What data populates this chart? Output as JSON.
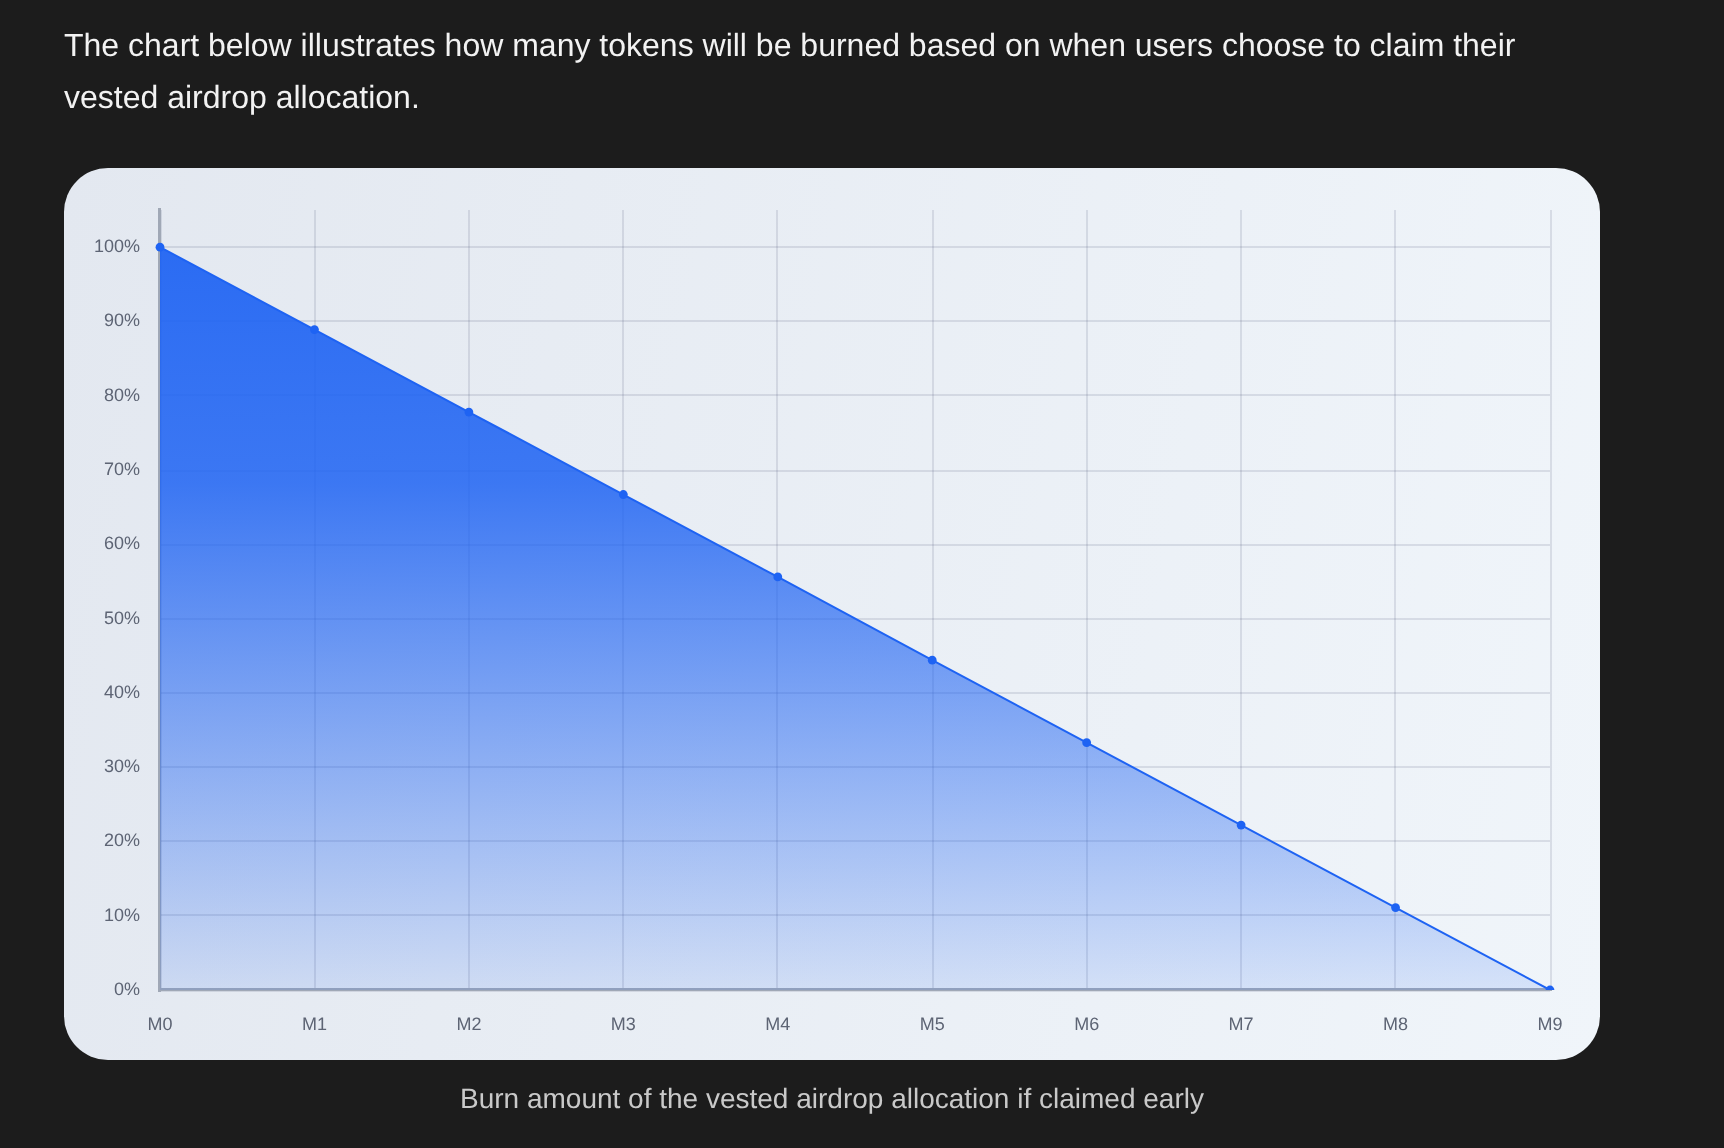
{
  "chart_data": {
    "type": "area",
    "title": "The chart below illustrates how many tokens will be burned based on when users choose to claim their vested airdrop allocation.",
    "annotations": [
      "Burn amount of the vested airdrop allocation if claimed early"
    ],
    "categories": [
      "M0",
      "M1",
      "M2",
      "M3",
      "M4",
      "M5",
      "M6",
      "M7",
      "M8",
      "M9"
    ],
    "values": [
      100,
      88.9,
      77.8,
      66.7,
      55.6,
      44.4,
      33.3,
      22.2,
      11.1,
      0
    ],
    "color": "#1e63f3",
    "ylim": [
      0,
      105
    ],
    "yticks": [
      {
        "value": 0,
        "label": "0%"
      },
      {
        "value": 10,
        "label": "10%"
      },
      {
        "value": 20,
        "label": "20%"
      },
      {
        "value": 30,
        "label": "30%"
      },
      {
        "value": 40,
        "label": "40%"
      },
      {
        "value": 50,
        "label": "50%"
      },
      {
        "value": 60,
        "label": "60%"
      },
      {
        "value": 70,
        "label": "70%"
      },
      {
        "value": 80,
        "label": "80%"
      },
      {
        "value": 90,
        "label": "90%"
      },
      {
        "value": 100,
        "label": "100%"
      }
    ],
    "grid": true,
    "marker": "circle",
    "line_style": "solid"
  }
}
